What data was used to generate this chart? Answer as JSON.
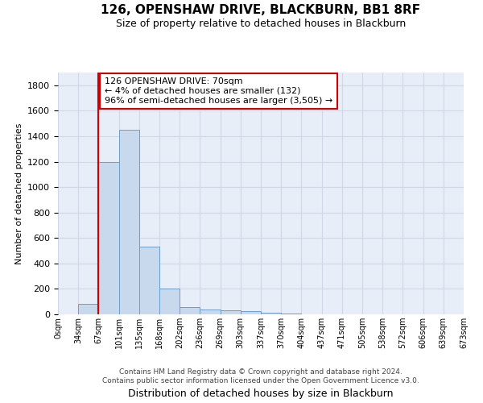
{
  "title": "126, OPENSHAW DRIVE, BLACKBURN, BB1 8RF",
  "subtitle": "Size of property relative to detached houses in Blackburn",
  "xlabel": "Distribution of detached houses by size in Blackburn",
  "ylabel": "Number of detached properties",
  "bar_color": "#c8d9ee",
  "bar_edge_color": "#6b9ec8",
  "bar_values": [
    0,
    80,
    1200,
    1450,
    530,
    200,
    60,
    35,
    30,
    25,
    10,
    5,
    3,
    2,
    1,
    1,
    1,
    1,
    1,
    0
  ],
  "bin_labels": [
    "0sqm",
    "34sqm",
    "67sqm",
    "101sqm",
    "135sqm",
    "168sqm",
    "202sqm",
    "236sqm",
    "269sqm",
    "303sqm",
    "337sqm",
    "370sqm",
    "404sqm",
    "437sqm",
    "471sqm",
    "505sqm",
    "538sqm",
    "572sqm",
    "606sqm",
    "639sqm",
    "673sqm"
  ],
  "ylim": [
    0,
    1900
  ],
  "yticks": [
    0,
    200,
    400,
    600,
    800,
    1000,
    1200,
    1400,
    1600,
    1800
  ],
  "vline_x": 2.0,
  "vline_color": "#cc0000",
  "annotation_text": "126 OPENSHAW DRIVE: 70sqm\n← 4% of detached houses are smaller (132)\n96% of semi-detached houses are larger (3,505) →",
  "annotation_box_color": "#ffffff",
  "annotation_box_edge": "#cc0000",
  "footer_text": "Contains HM Land Registry data © Crown copyright and database right 2024.\nContains public sector information licensed under the Open Government Licence v3.0.",
  "grid_color": "#d0d8e8",
  "background_color": "#e8eef8"
}
